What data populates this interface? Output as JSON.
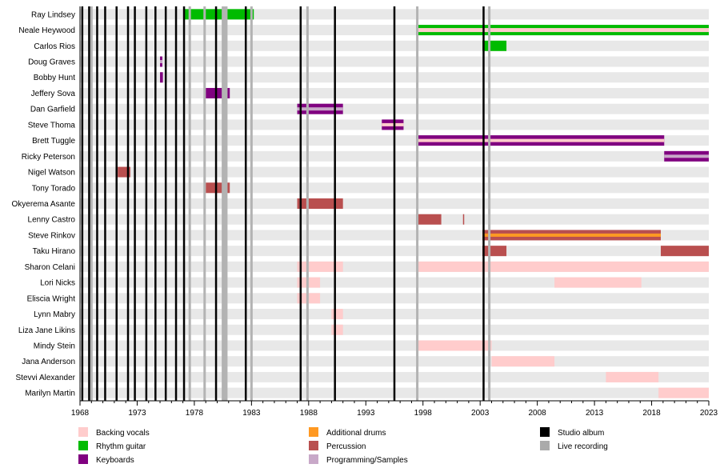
{
  "chart_data": {
    "type": "timeline",
    "x_range": [
      1968,
      2023
    ],
    "x_ticks": [
      "1968",
      "1973",
      "1978",
      "1983",
      "1988",
      "1993",
      "1998",
      "2003",
      "2008",
      "2013",
      "2018",
      "2023"
    ],
    "members": [
      "Ray Lindsey",
      "Neale Heywood",
      "Carlos Rios",
      "Doug Graves",
      "Bobby Hunt",
      "Jeffery Sova",
      "Dan Garfield",
      "Steve Thoma",
      "Brett Tuggle",
      "Ricky Peterson",
      "Nigel Watson",
      "Tony Torado",
      "Okyerema Asante",
      "Lenny Castro",
      "Steve Rinkov",
      "Taku Hirano",
      "Sharon Celani",
      "Lori Nicks",
      "Eliscia Wright",
      "Lynn Mabry",
      "Liza Jane Likins",
      "Mindy Stein",
      "Jana Anderson",
      "Stevvi Alexander",
      "Marilyn Martin"
    ],
    "roles": {
      "backing_vocals": {
        "label": "Backing vocals",
        "color": "#ffcccc"
      },
      "rhythm_guitar": {
        "label": "Rhythm guitar",
        "color": "#00bb00"
      },
      "keyboards": {
        "label": "Keyboards",
        "color": "#800080"
      },
      "additional_drums": {
        "label": "Additional drums",
        "color": "#ff9922"
      },
      "percussion": {
        "label": "Percussion",
        "color": "#b94f4f"
      },
      "programming": {
        "label": "Programming/Samples",
        "color": "#c8a8c8"
      }
    },
    "bars": [
      {
        "member": 0,
        "start": 1977.1,
        "end": 1983.2,
        "roles": [
          "rhythm_guitar"
        ]
      },
      {
        "member": 1,
        "start": 1997.4,
        "end": 2023.0,
        "roles": [
          "rhythm_guitar",
          "backing_vocals"
        ]
      },
      {
        "member": 2,
        "start": 2003.2,
        "end": 2005.3,
        "roles": [
          "rhythm_guitar"
        ]
      },
      {
        "member": 3,
        "start": 1975.0,
        "end": 1975.2,
        "roles": [
          "keyboards",
          "programming"
        ]
      },
      {
        "member": 4,
        "start": 1975.0,
        "end": 1975.25,
        "roles": [
          "keyboards"
        ]
      },
      {
        "member": 5,
        "start": 1979.0,
        "end": 1981.1,
        "roles": [
          "keyboards"
        ]
      },
      {
        "member": 6,
        "start": 1987.0,
        "end": 1991.0,
        "roles": [
          "keyboards",
          "programming"
        ]
      },
      {
        "member": 7,
        "start": 1994.4,
        "end": 1996.3,
        "roles": [
          "keyboards",
          "backing_vocals"
        ]
      },
      {
        "member": 8,
        "start": 1997.4,
        "end": 2019.1,
        "roles": [
          "keyboards",
          "backing_vocals"
        ]
      },
      {
        "member": 9,
        "start": 2019.1,
        "end": 2023.0,
        "roles": [
          "keyboards",
          "programming"
        ]
      },
      {
        "member": 10,
        "start": 1971.3,
        "end": 1972.4,
        "roles": [
          "percussion"
        ]
      },
      {
        "member": 11,
        "start": 1979.0,
        "end": 1981.1,
        "roles": [
          "percussion"
        ]
      },
      {
        "member": 12,
        "start": 1987.0,
        "end": 1991.0,
        "roles": [
          "percussion"
        ]
      },
      {
        "member": 13,
        "start": 1997.4,
        "end": 1999.6,
        "roles": [
          "percussion"
        ]
      },
      {
        "member": 13,
        "start": 2001.5,
        "end": 2001.6,
        "roles": [
          "percussion"
        ]
      },
      {
        "member": 14,
        "start": 2003.2,
        "end": 2018.8,
        "roles": [
          "percussion",
          "additional_drums"
        ]
      },
      {
        "member": 15,
        "start": 2003.2,
        "end": 2005.3,
        "roles": [
          "percussion"
        ]
      },
      {
        "member": 15,
        "start": 2018.8,
        "end": 2023.0,
        "roles": [
          "percussion"
        ]
      },
      {
        "member": 16,
        "start": 1987.0,
        "end": 1991.0,
        "roles": [
          "backing_vocals"
        ]
      },
      {
        "member": 16,
        "start": 1997.4,
        "end": 2023.0,
        "roles": [
          "backing_vocals"
        ]
      },
      {
        "member": 17,
        "start": 1987.0,
        "end": 1989.0,
        "roles": [
          "backing_vocals"
        ]
      },
      {
        "member": 17,
        "start": 2009.5,
        "end": 2017.1,
        "roles": [
          "backing_vocals"
        ]
      },
      {
        "member": 18,
        "start": 1987.0,
        "end": 1989.0,
        "roles": [
          "backing_vocals"
        ]
      },
      {
        "member": 19,
        "start": 1990.0,
        "end": 1991.0,
        "roles": [
          "backing_vocals"
        ]
      },
      {
        "member": 20,
        "start": 1990.0,
        "end": 1991.0,
        "roles": [
          "backing_vocals"
        ]
      },
      {
        "member": 21,
        "start": 1997.4,
        "end": 2004.0,
        "roles": [
          "backing_vocals"
        ]
      },
      {
        "member": 22,
        "start": 2004.0,
        "end": 2009.5,
        "roles": [
          "backing_vocals"
        ]
      },
      {
        "member": 23,
        "start": 2014.0,
        "end": 2018.6,
        "roles": [
          "backing_vocals"
        ]
      },
      {
        "member": 24,
        "start": 2018.6,
        "end": 2023.0,
        "roles": [
          "backing_vocals"
        ]
      }
    ],
    "studio_albums": [
      1968.2,
      1968.8,
      1969.5,
      1970.2,
      1971.2,
      1972.2,
      1972.8,
      1973.8,
      1974.6,
      1975.5,
      1976.4,
      1977.1,
      1979.9,
      1982.5,
      1987.3,
      1990.3,
      1995.5,
      2003.3
    ],
    "live_recordings": [
      1969.0,
      1977.6,
      1978.9,
      1980.5,
      1980.6,
      1980.8,
      1983.0,
      1987.9,
      1997.5,
      2003.8
    ],
    "legend": [
      {
        "label": "Backing vocals",
        "color": "#ffcccc",
        "column": 0
      },
      {
        "label": "Rhythm guitar",
        "color": "#00bb00",
        "column": 0
      },
      {
        "label": "Keyboards",
        "color": "#800080",
        "column": 0
      },
      {
        "label": "Additional drums",
        "color": "#ff9922",
        "column": 1
      },
      {
        "label": "Percussion",
        "color": "#b94f4f",
        "column": 1
      },
      {
        "label": "Programming/Samples",
        "color": "#c8a8c8",
        "column": 1
      },
      {
        "label": "Studio album",
        "color": "#000000",
        "column": 2
      },
      {
        "label": "Live recording",
        "color": "#aaaaaa",
        "column": 2
      }
    ],
    "colors": {
      "row_stripe": "#e8e8e8",
      "studio_line": "#000000",
      "live_line": "#b3b3b3"
    }
  }
}
